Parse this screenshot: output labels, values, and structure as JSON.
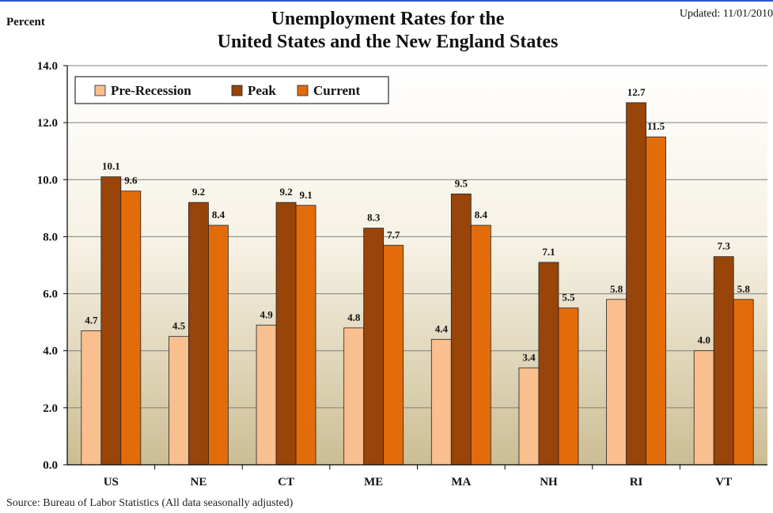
{
  "header": {
    "title_line1": "Unemployment Rates for the",
    "title_line2": "United States and the New England States",
    "updated": "Updated:  11/01/2010",
    "y_unit": "Percent"
  },
  "footer": {
    "source": "Source:  Bureau of Labor Statistics (All data seasonally adjusted)"
  },
  "chart_data": {
    "type": "bar",
    "title": "Unemployment Rates for the United States and the New England States",
    "ylabel": "Percent",
    "xlabel": "",
    "ylim": [
      0,
      14
    ],
    "yticks": [
      "0.0",
      "2.0",
      "4.0",
      "6.0",
      "8.0",
      "10.0",
      "12.0",
      "14.0"
    ],
    "grid": true,
    "legend": "top-left",
    "categories": [
      "US",
      "NE",
      "CT",
      "ME",
      "MA",
      "NH",
      "RI",
      "VT"
    ],
    "series": [
      {
        "name": "Pre-Recession",
        "color": "#f9bf8f",
        "values": [
          4.7,
          4.5,
          4.9,
          4.8,
          4.4,
          3.4,
          5.8,
          4.0
        ]
      },
      {
        "name": "Peak",
        "color": "#994409",
        "values": [
          10.1,
          9.2,
          9.2,
          8.3,
          9.5,
          7.1,
          12.7,
          7.3
        ]
      },
      {
        "name": "Current",
        "color": "#e36c0a",
        "values": [
          9.6,
          8.4,
          9.1,
          7.7,
          8.4,
          5.5,
          11.5,
          5.8
        ]
      }
    ]
  }
}
